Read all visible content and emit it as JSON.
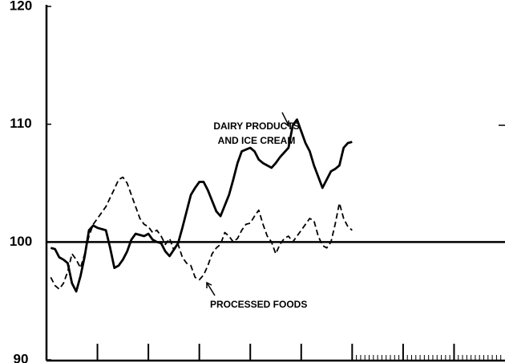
{
  "chart_data": {
    "type": "line",
    "ylim": [
      90,
      120
    ],
    "yticks": [
      90,
      100,
      110,
      120
    ],
    "xlim": [
      0,
      108
    ],
    "xticks": [
      12,
      24,
      36,
      48,
      60,
      72,
      84,
      96
    ],
    "xminorticks": [
      73,
      74,
      75,
      76,
      77,
      78,
      79,
      80,
      81,
      82,
      83,
      85,
      86,
      87,
      88,
      89,
      90,
      91,
      92,
      93,
      94,
      95,
      97,
      98,
      99,
      100,
      101,
      102,
      103,
      104,
      105,
      106,
      107
    ],
    "reference_line": 100,
    "series": [
      {
        "name": "DAIRY PRODUCTS AND ICE CREAM",
        "color": "#000000",
        "style": "solid",
        "x": [
          1,
          2,
          3,
          4,
          5,
          6,
          7,
          8,
          9,
          10,
          11,
          12,
          14,
          15,
          16,
          17,
          18,
          19,
          20,
          21,
          23,
          24,
          25,
          26,
          27,
          28,
          29,
          31,
          32,
          33,
          34,
          35,
          36,
          37,
          38,
          40,
          41,
          42,
          43,
          44,
          45,
          46,
          48,
          49,
          50,
          51,
          52,
          53,
          54,
          55,
          57,
          58,
          59,
          60,
          61,
          62,
          63,
          65,
          66,
          67,
          68,
          69,
          70,
          71,
          72
        ],
        "values": [
          99.5,
          99.4,
          98.7,
          98.5,
          98.2,
          96.5,
          95.8,
          97.1,
          98.8,
          101.0,
          101.4,
          101.2,
          101.0,
          99.5,
          97.8,
          98.0,
          98.5,
          99.2,
          100.2,
          100.7,
          100.5,
          100.7,
          100.2,
          100.0,
          99.9,
          99.2,
          98.8,
          99.9,
          101.2,
          102.6,
          104.0,
          104.6,
          105.1,
          105.1,
          104.4,
          102.6,
          102.2,
          103.1,
          104.0,
          105.3,
          106.7,
          107.7,
          108.0,
          107.7,
          107.0,
          106.7,
          106.5,
          106.3,
          106.7,
          107.2,
          108.0,
          109.9,
          110.4,
          109.4,
          108.4,
          107.7,
          106.5,
          104.6,
          105.3,
          106.0,
          106.2,
          106.5,
          108.0,
          108.4,
          108.5
        ]
      },
      {
        "name": "PROCESSED FOODS",
        "color": "#000000",
        "style": "dashed",
        "x": [
          1,
          2,
          3,
          4,
          5,
          6,
          7,
          8,
          9,
          10,
          11,
          12,
          14,
          16,
          17,
          18,
          19,
          20,
          21,
          22,
          23,
          24,
          25,
          26,
          27,
          28,
          29,
          30,
          31,
          32,
          33,
          34,
          35,
          36,
          37,
          38,
          39,
          40,
          41,
          42,
          43,
          44,
          45,
          46,
          47,
          48,
          49,
          50,
          51,
          52,
          53,
          54,
          55,
          56,
          57,
          58,
          59,
          60,
          61,
          62,
          63,
          64,
          65,
          66,
          67,
          68,
          69,
          70,
          71,
          72
        ],
        "values": [
          97.0,
          96.3,
          96.0,
          96.5,
          97.5,
          99.0,
          98.5,
          97.8,
          99.0,
          100.5,
          101.5,
          102.0,
          103.0,
          104.5,
          105.3,
          105.5,
          105.0,
          104.0,
          103.0,
          102.0,
          101.5,
          101.3,
          100.8,
          101.0,
          100.5,
          99.8,
          100.3,
          99.3,
          99.8,
          98.7,
          98.2,
          98.0,
          97.0,
          96.8,
          97.2,
          98.0,
          99.0,
          99.5,
          99.8,
          100.8,
          100.5,
          100.0,
          100.3,
          101.0,
          101.5,
          101.6,
          102.2,
          102.7,
          101.5,
          100.5,
          100.0,
          99.0,
          99.8,
          100.3,
          100.5,
          100.0,
          100.5,
          101.0,
          101.5,
          102.0,
          101.8,
          100.5,
          99.7,
          99.5,
          100.0,
          101.5,
          103.3,
          102.0,
          101.3,
          101.0
        ]
      }
    ],
    "annotations": [
      {
        "lines": [
          "DAIRY PRODUCTS",
          "AND ICE CREAM"
        ]
      },
      {
        "lines": [
          "PROCESSED FOODS"
        ]
      }
    ]
  }
}
